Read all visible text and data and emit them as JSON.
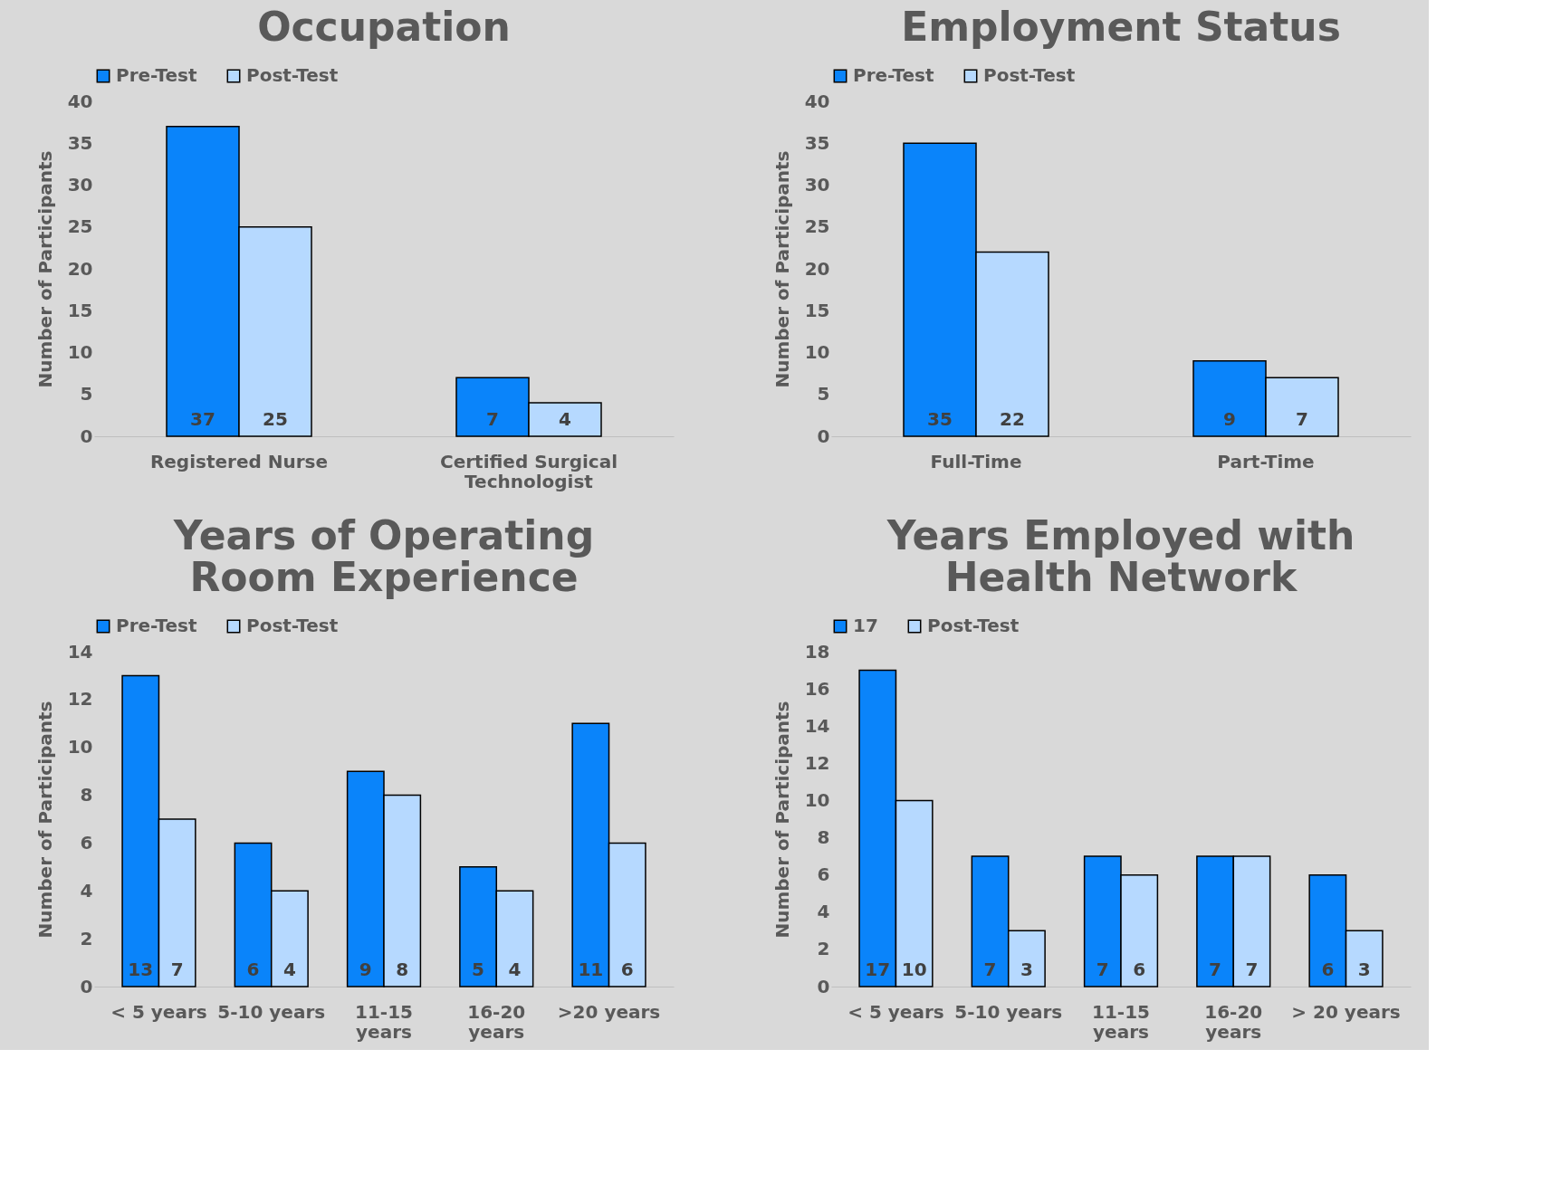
{
  "chart_data": [
    {
      "type": "bar",
      "title": "Occupation",
      "ylabel": "Number of Participants",
      "categories": [
        "Registered Nurse",
        "Certified Surgical Technologist"
      ],
      "series": [
        {
          "name": "Pre-Test",
          "color": "#0a84fa",
          "values": [
            37,
            7
          ]
        },
        {
          "name": "Post-Test",
          "color": "#b6d9ff",
          "values": [
            25,
            4
          ]
        }
      ],
      "ylim": [
        0,
        40
      ],
      "yticks": [
        0,
        5,
        10,
        15,
        20,
        25,
        30,
        35,
        40
      ],
      "data_labels": true,
      "legend": "top"
    },
    {
      "type": "bar",
      "title": "Employment Status",
      "ylabel": "Number of Participants",
      "categories": [
        "Full-Time",
        "Part-Time"
      ],
      "series": [
        {
          "name": "Pre-Test",
          "color": "#0a84fa",
          "values": [
            35,
            9
          ]
        },
        {
          "name": "Post-Test",
          "color": "#b6d9ff",
          "values": [
            22,
            7
          ]
        }
      ],
      "ylim": [
        0,
        40
      ],
      "yticks": [
        0,
        5,
        10,
        15,
        20,
        25,
        30,
        35,
        40
      ],
      "data_labels": true,
      "legend": "top"
    },
    {
      "type": "bar",
      "title": "Years of Operating Room Experience",
      "ylabel": "Number of Participants",
      "categories": [
        "< 5 years",
        "5-10 years",
        "11-15 years",
        "16-20 years",
        ">20 years"
      ],
      "series": [
        {
          "name": "Pre-Test",
          "color": "#0a84fa",
          "values": [
            13,
            6,
            9,
            5,
            11
          ]
        },
        {
          "name": "Post-Test",
          "color": "#b6d9ff",
          "values": [
            7,
            4,
            8,
            4,
            6
          ]
        }
      ],
      "ylim": [
        0,
        14
      ],
      "yticks": [
        0,
        2,
        4,
        6,
        8,
        10,
        12,
        14
      ],
      "data_labels": true,
      "legend": "top"
    },
    {
      "type": "bar",
      "title": "Years Employed with Health Network",
      "ylabel": "Number of Participants",
      "categories": [
        "< 5 years",
        "5-10 years",
        "11-15 years",
        "16-20 years",
        "> 20 years"
      ],
      "series": [
        {
          "name": "17",
          "color": "#0a84fa",
          "values": [
            17,
            7,
            7,
            7,
            6
          ]
        },
        {
          "name": "Post-Test",
          "color": "#b6d9ff",
          "values": [
            10,
            3,
            6,
            7,
            3
          ]
        }
      ],
      "ylim": [
        0,
        18
      ],
      "yticks": [
        0,
        2,
        4,
        6,
        8,
        10,
        12,
        14,
        16,
        18
      ],
      "data_labels": true,
      "legend": "top"
    }
  ]
}
